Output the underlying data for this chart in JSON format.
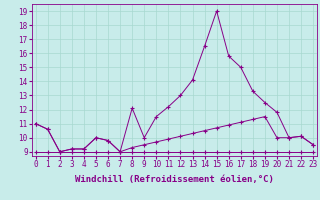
{
  "bg_color": "#c8ecea",
  "line_color": "#880088",
  "grid_color": "#a8d8d0",
  "xlim": [
    -0.3,
    23.3
  ],
  "ylim": [
    8.7,
    19.5
  ],
  "xticks": [
    0,
    1,
    2,
    3,
    4,
    5,
    6,
    7,
    8,
    9,
    10,
    11,
    12,
    13,
    14,
    15,
    16,
    17,
    18,
    19,
    20,
    21,
    22,
    23
  ],
  "yticks": [
    9,
    10,
    11,
    12,
    13,
    14,
    15,
    16,
    17,
    18,
    19
  ],
  "line1_x": [
    0,
    1,
    2,
    3,
    4,
    5,
    6,
    7,
    8,
    9,
    10,
    11,
    12,
    13,
    14,
    15,
    16,
    17,
    18,
    19,
    20,
    21,
    22,
    23
  ],
  "line1_y": [
    9.0,
    9.0,
    9.0,
    9.0,
    9.0,
    9.0,
    9.0,
    9.0,
    9.0,
    9.0,
    9.0,
    9.0,
    9.0,
    9.0,
    9.0,
    9.0,
    9.0,
    9.0,
    9.0,
    9.0,
    9.0,
    9.0,
    9.0,
    9.0
  ],
  "line2_x": [
    0,
    1,
    2,
    3,
    4,
    5,
    6,
    7,
    8,
    9,
    10,
    11,
    12,
    13,
    14,
    15,
    16,
    17,
    18,
    19,
    20,
    21,
    22,
    23
  ],
  "line2_y": [
    11.0,
    10.6,
    9.0,
    9.2,
    9.2,
    10.0,
    9.8,
    9.0,
    9.3,
    9.5,
    9.7,
    9.9,
    10.1,
    10.3,
    10.5,
    10.7,
    10.9,
    11.1,
    11.3,
    11.5,
    10.0,
    10.0,
    10.1,
    9.5
  ],
  "line3_x": [
    0,
    1,
    2,
    3,
    4,
    5,
    6,
    7,
    8,
    9,
    10,
    11,
    12,
    13,
    14,
    15,
    16,
    17,
    18,
    19,
    20,
    21,
    22,
    23
  ],
  "line3_y": [
    11.0,
    10.6,
    9.0,
    9.2,
    9.2,
    10.0,
    9.8,
    9.0,
    12.1,
    10.0,
    11.5,
    12.2,
    13.0,
    14.1,
    16.5,
    19.0,
    15.8,
    15.0,
    13.3,
    12.5,
    11.8,
    10.0,
    10.1,
    9.5
  ],
  "xlabel": "Windchill (Refroidissement éolien,°C)",
  "xlabel_fontsize": 6.5,
  "tick_fontsize": 5.5
}
